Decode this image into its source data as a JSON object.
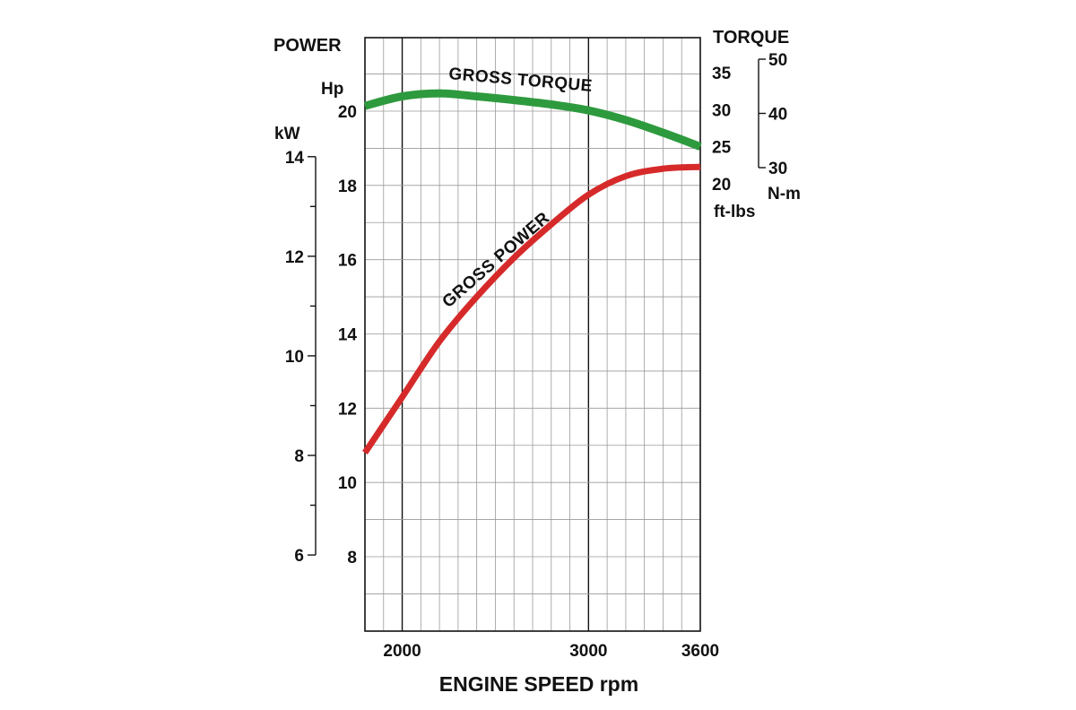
{
  "chart_data": {
    "type": "line",
    "xlabel": "ENGINE SPEED rpm",
    "x_ticks": [
      2000,
      3000,
      3600
    ],
    "xlim": [
      1800,
      3600
    ],
    "power_axis": {
      "title": "POWER",
      "hp_unit": "Hp",
      "hp_ticks": [
        8,
        10,
        12,
        14,
        16,
        18,
        20
      ],
      "hp_range": [
        6,
        22
      ],
      "kw_unit": "kW",
      "kw_ticks": [
        6,
        8,
        10,
        12,
        14
      ]
    },
    "torque_axis": {
      "title": "TORQUE",
      "ftlbs_unit": "ft-lbs",
      "ftlbs_ticks": [
        20,
        25,
        30,
        35
      ],
      "nm_unit": "N-m",
      "nm_ticks": [
        30,
        40,
        50
      ]
    },
    "series": [
      {
        "name": "GROSS TORQUE",
        "color": "#2e9a3e",
        "x": [
          1800,
          2000,
          2200,
          2400,
          2600,
          2800,
          3000,
          3200,
          3400,
          3600
        ],
        "y_ftlbs": [
          30.5,
          31.8,
          32.2,
          31.8,
          31.3,
          30.7,
          29.9,
          28.6,
          26.9,
          25.0
        ]
      },
      {
        "name": "GROSS POWER",
        "color": "#d62a2a",
        "x": [
          1800,
          2000,
          2200,
          2400,
          2600,
          2800,
          3000,
          3200,
          3400,
          3600
        ],
        "y_hp": [
          10.8,
          12.3,
          13.8,
          15.0,
          16.05,
          16.95,
          17.75,
          18.25,
          18.45,
          18.5
        ]
      }
    ]
  }
}
